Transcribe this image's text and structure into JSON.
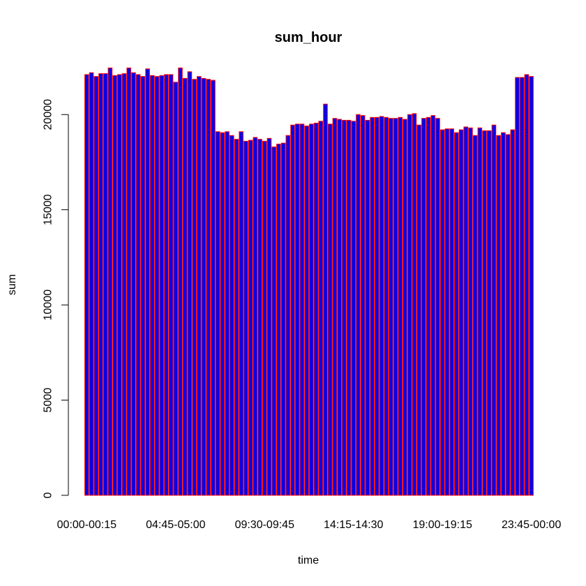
{
  "chart_data": {
    "type": "bar",
    "title": "sum_hour",
    "xlabel": "time",
    "ylabel": "sum",
    "ylim": [
      0,
      22500
    ],
    "y_ticks": [
      0,
      5000,
      10000,
      15000,
      20000
    ],
    "x_tick_labels": [
      "00:00-00:15",
      "04:45-05:00",
      "09:30-09:45",
      "14:15-14:30",
      "19:00-19:15",
      "23:45-00:00"
    ],
    "x_tick_indices": [
      0,
      19,
      38,
      57,
      76,
      95
    ],
    "bar_fill": "#0000ee",
    "bar_border": "#ff0000",
    "values": [
      22100,
      22200,
      22000,
      22150,
      22150,
      22450,
      22050,
      22100,
      22150,
      22450,
      22200,
      22100,
      22000,
      22400,
      22050,
      22000,
      22050,
      22100,
      22100,
      21700,
      22450,
      21900,
      22250,
      21850,
      22000,
      21900,
      21850,
      21800,
      19100,
      19050,
      19100,
      18900,
      18700,
      19100,
      18600,
      18650,
      18800,
      18700,
      18600,
      18750,
      18300,
      18450,
      18500,
      18900,
      19450,
      19500,
      19500,
      19400,
      19500,
      19550,
      19650,
      20550,
      19500,
      19800,
      19750,
      19700,
      19700,
      19650,
      20000,
      19950,
      19700,
      19850,
      19850,
      19900,
      19850,
      19800,
      19800,
      19850,
      19750,
      20000,
      20050,
      19450,
      19800,
      19850,
      19950,
      19800,
      19200,
      19250,
      19250,
      19050,
      19200,
      19350,
      19300,
      18900,
      19300,
      19150,
      19150,
      19450,
      18900,
      19050,
      18950,
      19200,
      21950,
      21950,
      22100,
      22000
    ]
  }
}
